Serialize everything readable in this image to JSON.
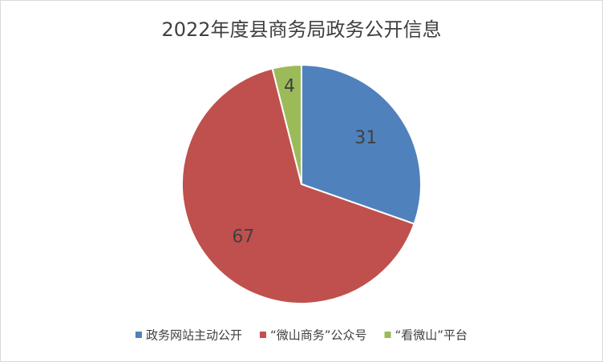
{
  "chart_data": {
    "type": "pie",
    "title": "2022年度县商务局政务公开信息",
    "categories": [
      "政务网站主动公开",
      "“微山商务”公众号",
      "“看微山”平台"
    ],
    "values": [
      31,
      67,
      4
    ],
    "colors": [
      "#4f81bd",
      "#c0504d",
      "#9bbb59"
    ],
    "legend": "bottom"
  }
}
